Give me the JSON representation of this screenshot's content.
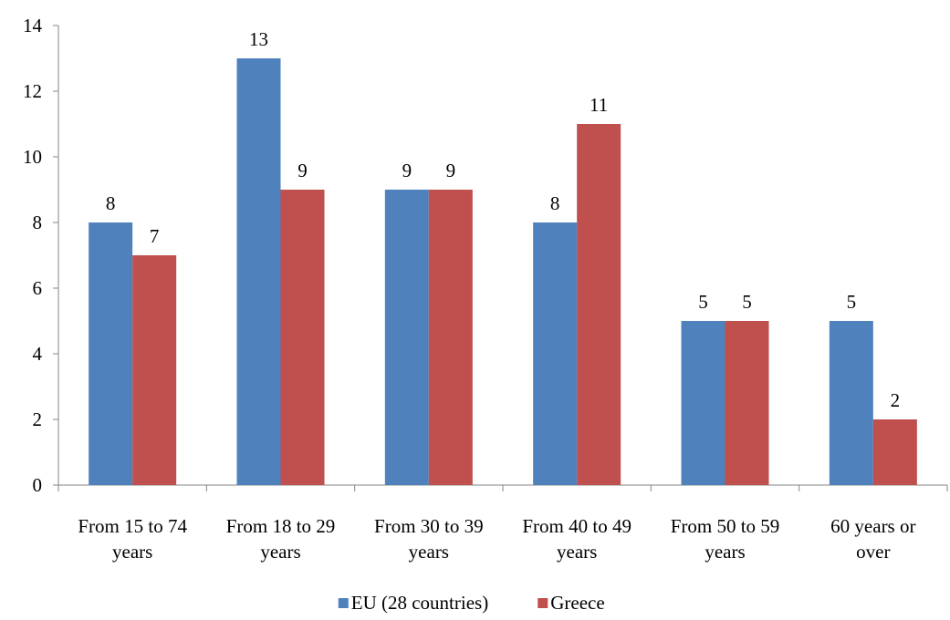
{
  "chart_data": {
    "type": "bar",
    "categories": [
      [
        "From 15 to 74",
        "years"
      ],
      [
        "From 18 to 29",
        "years"
      ],
      [
        "From 30 to 39",
        "years"
      ],
      [
        "From 40 to 49",
        "years"
      ],
      [
        "From 50 to 59",
        "years"
      ],
      [
        "60 years or",
        "over"
      ]
    ],
    "series": [
      {
        "name": "EU (28 countries)",
        "color": "#4F81BD",
        "values": [
          8,
          13,
          9,
          8,
          5,
          5
        ]
      },
      {
        "name": "Greece",
        "color": "#C0504D",
        "values": [
          7,
          9,
          9,
          11,
          5,
          2
        ]
      }
    ],
    "ylim": [
      0,
      14
    ],
    "yticks": [
      0,
      2,
      4,
      6,
      8,
      10,
      12,
      14
    ],
    "grid": false,
    "legend_position": "bottom",
    "data_labels": true
  }
}
